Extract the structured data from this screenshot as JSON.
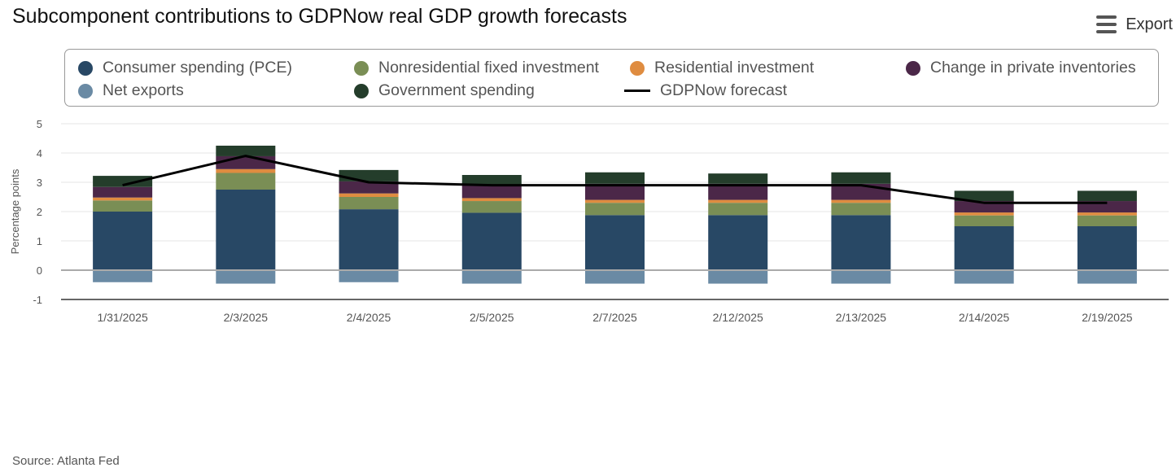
{
  "title": "Subcomponent contributions to GDPNow real GDP growth forecasts",
  "export": {
    "label": "Export",
    "icon": "menu-icon"
  },
  "source": "Source: Atlanta Fed",
  "colors": {
    "pce": "#284865",
    "nonres": "#7a8e55",
    "residential": "#df8c40",
    "inventories": "#4b2748",
    "net_exports": "#6a8aa4",
    "government": "#243d2b",
    "forecast": "#000000"
  },
  "chart_data": {
    "type": "bar",
    "stacked": true,
    "title": "",
    "ylabel": "Percentage points",
    "ylim": [
      -1,
      5
    ],
    "yticks": [
      "-1",
      "0",
      "1",
      "2",
      "3",
      "4",
      "5"
    ],
    "grid": true,
    "legend_position": "top",
    "categories": [
      "1/31/2025",
      "2/3/2025",
      "2/4/2025",
      "2/5/2025",
      "2/7/2025",
      "2/12/2025",
      "2/13/2025",
      "2/14/2025",
      "2/19/2025"
    ],
    "series": [
      {
        "name": "Consumer spending (PCE)",
        "key": "pce",
        "values": [
          2.0,
          2.75,
          2.08,
          1.96,
          1.88,
          1.88,
          1.88,
          1.5,
          1.5
        ]
      },
      {
        "name": "Nonresidential fixed investment",
        "key": "nonres",
        "values": [
          0.38,
          0.57,
          0.42,
          0.4,
          0.42,
          0.42,
          0.42,
          0.37,
          0.37
        ]
      },
      {
        "name": "Residential investment",
        "key": "residential",
        "values": [
          0.1,
          0.13,
          0.12,
          0.1,
          0.1,
          0.1,
          0.1,
          0.1,
          0.1
        ]
      },
      {
        "name": "Change in private inventories",
        "key": "inventories",
        "values": [
          0.36,
          0.44,
          0.41,
          0.44,
          0.55,
          0.55,
          0.55,
          0.39,
          0.39
        ]
      },
      {
        "name": "Net exports",
        "key": "net_exports",
        "values": [
          -0.41,
          -0.46,
          -0.41,
          -0.46,
          -0.46,
          -0.46,
          -0.46,
          -0.46,
          -0.46
        ]
      },
      {
        "name": "Government spending",
        "key": "government",
        "values": [
          0.38,
          0.36,
          0.39,
          0.35,
          0.39,
          0.35,
          0.39,
          0.35,
          0.35
        ]
      }
    ],
    "line": {
      "name": "GDPNow forecast",
      "key": "forecast",
      "values": [
        2.9,
        3.9,
        3.0,
        2.9,
        2.9,
        2.9,
        2.9,
        2.3,
        2.3
      ]
    }
  }
}
